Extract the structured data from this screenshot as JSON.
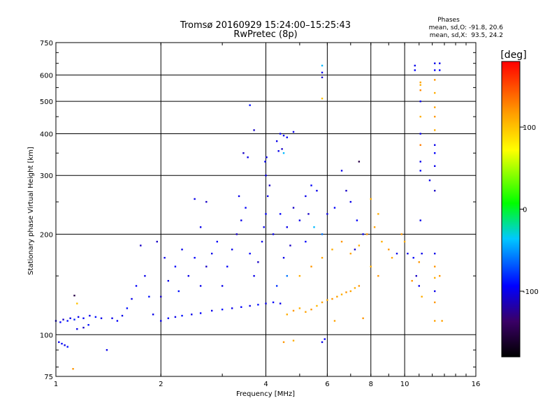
{
  "chart_data": {
    "type": "scatter",
    "title": "Tromsø 20160929 15:24:00–15:25:43",
    "subtitle": "RwPretec (8p)",
    "stats": {
      "heading": "Phases",
      "line_o": "mean, sd,O: -91.8, 20.6",
      "line_x": "mean, sd,X:  93.5, 24.2"
    },
    "xlabel": "Frequency [MHz]",
    "ylabel": "Stationary phase Virtual Height [km]",
    "xscale": "log",
    "yscale": "log",
    "xlim": [
      1,
      16
    ],
    "ylim": [
      75,
      750
    ],
    "x_ticks": [
      {
        "value": 1,
        "label": "1"
      },
      {
        "value": 2,
        "label": "2"
      },
      {
        "value": 4,
        "label": "4"
      },
      {
        "value": 6,
        "label": "6"
      },
      {
        "value": 8,
        "label": "8"
      },
      {
        "value": 10,
        "label": "10"
      },
      {
        "value": 16,
        "label": "16"
      }
    ],
    "y_ticks": [
      {
        "value": 75,
        "label": "75"
      },
      {
        "value": 100,
        "label": "100"
      },
      {
        "value": 200,
        "label": "200"
      },
      {
        "value": 300,
        "label": "300"
      },
      {
        "value": 400,
        "label": "400"
      },
      {
        "value": 500,
        "label": "500"
      },
      {
        "value": 600,
        "label": "600"
      },
      {
        "value": 750,
        "label": "750"
      }
    ],
    "grid": true,
    "colorbar": {
      "title": "[deg]",
      "range": [
        -180,
        180
      ],
      "tick_labels": [
        {
          "value": 100,
          "label": "100"
        },
        {
          "value": 0,
          "label": "0"
        },
        {
          "value": -100,
          "label": "-100"
        }
      ]
    },
    "series": [
      {
        "values": [
          [
            1.0,
            110,
            -100
          ],
          [
            1.03,
            109,
            -95
          ],
          [
            1.05,
            111,
            -110
          ],
          [
            1.08,
            110,
            -90
          ],
          [
            1.1,
            112,
            -100
          ],
          [
            1.13,
            111,
            -85
          ],
          [
            1.16,
            113,
            -100
          ],
          [
            1.2,
            112,
            -95
          ],
          [
            1.25,
            114,
            -100
          ],
          [
            1.3,
            113,
            -90
          ],
          [
            1.35,
            112,
            -100
          ],
          [
            1.2,
            105,
            -110
          ],
          [
            1.24,
            107,
            -90
          ],
          [
            1.15,
            104,
            -100
          ],
          [
            1.02,
            95,
            -100
          ],
          [
            1.04,
            94,
            -95
          ],
          [
            1.06,
            93,
            -100
          ],
          [
            1.08,
            92,
            -90
          ],
          [
            1.13,
            131,
            -150
          ],
          [
            1.15,
            124,
            100
          ],
          [
            1.12,
            79,
            120
          ],
          [
            1.4,
            90,
            -100
          ],
          [
            1.45,
            112,
            -100
          ],
          [
            1.5,
            110,
            -95
          ],
          [
            1.55,
            114,
            -100
          ],
          [
            1.6,
            120,
            -90
          ],
          [
            1.65,
            128,
            -100
          ],
          [
            1.7,
            140,
            -95
          ],
          [
            1.75,
            185,
            -110
          ],
          [
            1.8,
            150,
            -100
          ],
          [
            1.85,
            130,
            -90
          ],
          [
            1.9,
            115,
            -100
          ],
          [
            2.0,
            110,
            -100
          ],
          [
            2.1,
            112,
            -95
          ],
          [
            2.2,
            113,
            -100
          ],
          [
            2.3,
            114,
            -90
          ],
          [
            2.45,
            115,
            -100
          ],
          [
            2.6,
            116,
            -95
          ],
          [
            2.8,
            118,
            -100
          ],
          [
            3.0,
            119,
            -90
          ],
          [
            3.2,
            120,
            -100
          ],
          [
            3.4,
            121,
            -95
          ],
          [
            3.6,
            122,
            -100
          ],
          [
            3.8,
            123,
            -90
          ],
          [
            4.0,
            124,
            -100
          ],
          [
            4.2,
            125,
            -95
          ],
          [
            4.4,
            124,
            -100
          ],
          [
            2.0,
            130,
            -110
          ],
          [
            2.1,
            145,
            -100
          ],
          [
            2.2,
            160,
            -95
          ],
          [
            2.05,
            170,
            -100
          ],
          [
            1.95,
            190,
            -110
          ],
          [
            2.25,
            135,
            -90
          ],
          [
            2.4,
            150,
            -100
          ],
          [
            2.5,
            170,
            -95
          ],
          [
            2.3,
            180,
            -100
          ],
          [
            2.6,
            140,
            -100
          ],
          [
            2.7,
            160,
            -110
          ],
          [
            2.8,
            175,
            -100
          ],
          [
            2.9,
            190,
            -95
          ],
          [
            2.5,
            255,
            -100
          ],
          [
            2.7,
            250,
            -110
          ],
          [
            2.6,
            210,
            -100
          ],
          [
            3.0,
            140,
            -100
          ],
          [
            3.1,
            160,
            -95
          ],
          [
            3.2,
            180,
            -100
          ],
          [
            3.3,
            200,
            -110
          ],
          [
            3.4,
            220,
            -100
          ],
          [
            3.5,
            240,
            -95
          ],
          [
            3.35,
            260,
            -100
          ],
          [
            3.45,
            350,
            -110
          ],
          [
            3.55,
            340,
            -100
          ],
          [
            3.6,
            175,
            -95
          ],
          [
            3.7,
            150,
            -100
          ],
          [
            3.8,
            165,
            -110
          ],
          [
            3.9,
            190,
            -100
          ],
          [
            3.95,
            210,
            -100
          ],
          [
            4.0,
            230,
            -95
          ],
          [
            4.05,
            260,
            -100
          ],
          [
            4.1,
            280,
            -110
          ],
          [
            4.0,
            300,
            -100
          ],
          [
            3.98,
            330,
            -95
          ],
          [
            4.02,
            340,
            -100
          ],
          [
            3.7,
            410,
            -110
          ],
          [
            3.6,
            487,
            -90
          ],
          [
            4.3,
            380,
            -100
          ],
          [
            4.4,
            400,
            -95
          ],
          [
            4.5,
            395,
            -100
          ],
          [
            4.45,
            360,
            -110
          ],
          [
            4.35,
            355,
            -100
          ],
          [
            4.6,
            390,
            -95
          ],
          [
            4.8,
            405,
            -100
          ],
          [
            4.5,
            350,
            -40
          ],
          [
            4.2,
            200,
            -100
          ],
          [
            4.4,
            230,
            -95
          ],
          [
            4.6,
            210,
            -100
          ],
          [
            4.8,
            240,
            -110
          ],
          [
            5.0,
            220,
            -100
          ],
          [
            5.2,
            190,
            -95
          ],
          [
            4.5,
            170,
            -100
          ],
          [
            4.7,
            185,
            -110
          ],
          [
            4.6,
            150,
            -60
          ],
          [
            4.3,
            140,
            -80
          ],
          [
            5.2,
            260,
            -100
          ],
          [
            5.4,
            280,
            -95
          ],
          [
            5.6,
            270,
            -100
          ],
          [
            5.3,
            230,
            -110
          ],
          [
            5.5,
            210,
            -40
          ],
          [
            5.8,
            200,
            -60
          ],
          [
            6.0,
            230,
            -100
          ],
          [
            6.3,
            240,
            -95
          ],
          [
            6.6,
            310,
            -100
          ],
          [
            6.8,
            270,
            -110
          ],
          [
            7.0,
            250,
            -100
          ],
          [
            7.3,
            220,
            -95
          ],
          [
            7.6,
            200,
            -100
          ],
          [
            7.2,
            180,
            -110
          ],
          [
            5.8,
            640,
            -40
          ],
          [
            5.8,
            610,
            -100
          ],
          [
            5.8,
            590,
            -110
          ],
          [
            5.8,
            510,
            100
          ],
          [
            5.8,
            95,
            -100
          ],
          [
            5.9,
            97,
            -95
          ],
          [
            4.6,
            115,
            110
          ],
          [
            4.8,
            118,
            120
          ],
          [
            5.0,
            120,
            110
          ],
          [
            5.2,
            117,
            115
          ],
          [
            5.4,
            119,
            120
          ],
          [
            5.6,
            122,
            105
          ],
          [
            5.8,
            125,
            115
          ],
          [
            6.0,
            127,
            110
          ],
          [
            6.2,
            128,
            120
          ],
          [
            6.4,
            130,
            115
          ],
          [
            6.6,
            132,
            110
          ],
          [
            6.8,
            134,
            120
          ],
          [
            7.0,
            135,
            115
          ],
          [
            7.2,
            138,
            110
          ],
          [
            7.4,
            140,
            120
          ],
          [
            5.0,
            150,
            110
          ],
          [
            5.4,
            160,
            120
          ],
          [
            5.8,
            170,
            115
          ],
          [
            6.2,
            180,
            110
          ],
          [
            6.6,
            190,
            120
          ],
          [
            7.0,
            175,
            115
          ],
          [
            7.4,
            185,
            110
          ],
          [
            7.8,
            200,
            120
          ],
          [
            8.2,
            210,
            115
          ],
          [
            8.6,
            190,
            110
          ],
          [
            9.0,
            180,
            120
          ],
          [
            9.2,
            170,
            115
          ],
          [
            8.0,
            160,
            110
          ],
          [
            8.4,
            150,
            120
          ],
          [
            4.5,
            95,
            120
          ],
          [
            4.8,
            96,
            110
          ],
          [
            6.3,
            110,
            115
          ],
          [
            7.6,
            112,
            120
          ],
          [
            8.0,
            255,
            110
          ],
          [
            8.4,
            230,
            110
          ],
          [
            7.4,
            330,
            -150
          ],
          [
            9.5,
            175,
            -100
          ],
          [
            9.8,
            200,
            120
          ],
          [
            10.0,
            190,
            110
          ],
          [
            10.2,
            175,
            -100
          ],
          [
            10.6,
            170,
            -95
          ],
          [
            11.0,
            165,
            120
          ],
          [
            11.2,
            175,
            -100
          ],
          [
            10.8,
            150,
            -110
          ],
          [
            11.0,
            140,
            -100
          ],
          [
            11.2,
            130,
            110
          ],
          [
            10.5,
            145,
            120
          ],
          [
            11.1,
            570,
            115
          ],
          [
            11.1,
            560,
            110
          ],
          [
            11.1,
            540,
            125
          ],
          [
            11.1,
            500,
            -100
          ],
          [
            11.1,
            450,
            110
          ],
          [
            11.1,
            400,
            -100
          ],
          [
            11.1,
            370,
            130
          ],
          [
            11.1,
            330,
            -100
          ],
          [
            11.1,
            310,
            -95
          ],
          [
            11.1,
            220,
            -100
          ],
          [
            12.2,
            650,
            -100
          ],
          [
            12.2,
            620,
            -95
          ],
          [
            12.2,
            580,
            120
          ],
          [
            12.2,
            530,
            110
          ],
          [
            12.2,
            480,
            115
          ],
          [
            12.2,
            450,
            120
          ],
          [
            12.2,
            410,
            110
          ],
          [
            12.2,
            370,
            -100
          ],
          [
            12.2,
            350,
            -95
          ],
          [
            12.2,
            320,
            -100
          ],
          [
            12.2,
            270,
            -110
          ],
          [
            12.2,
            175,
            -100
          ],
          [
            12.2,
            160,
            120
          ],
          [
            12.2,
            148,
            110
          ],
          [
            12.2,
            135,
            -100
          ],
          [
            12.2,
            125,
            120
          ],
          [
            12.2,
            110,
            115
          ],
          [
            12.8,
            110,
            115
          ],
          [
            12.6,
            150,
            120
          ],
          [
            11.8,
            290,
            -100
          ],
          [
            12.6,
            650,
            -100
          ],
          [
            12.6,
            620,
            -95
          ],
          [
            10.7,
            640,
            -100
          ],
          [
            10.7,
            620,
            -95
          ]
        ]
      }
    ]
  }
}
